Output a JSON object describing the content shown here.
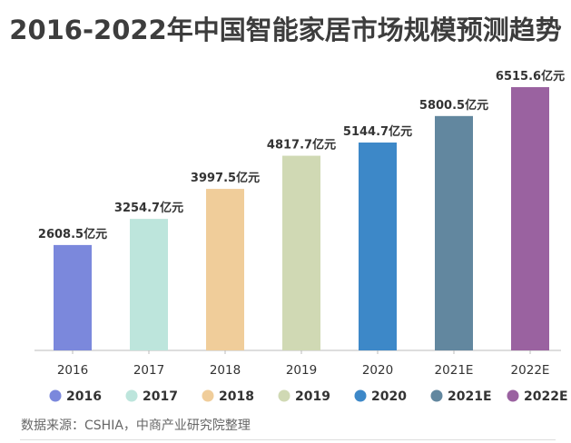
{
  "title": "2016-2022年中国智能家居市场规模预测趋势",
  "source": "数据来源：CSHIA，中商产业研究院整理",
  "chart_data": {
    "type": "bar",
    "title": "2016-2022年中国智能家居市场规模预测趋势",
    "xlabel": "",
    "ylabel": "",
    "unit": "亿元",
    "categories": [
      "2016",
      "2017",
      "2018",
      "2019",
      "2020",
      "2021E",
      "2022E"
    ],
    "values": [
      2608.5,
      3254.7,
      3997.5,
      4817.7,
      5144.7,
      5800.5,
      6515.6
    ],
    "data_labels": [
      "2608.5亿元",
      "3254.7亿元",
      "3997.5亿元",
      "4817.7亿元",
      "5144.7亿元",
      "5800.5亿元",
      "6515.6亿元"
    ],
    "colors": [
      "#7b88dc",
      "#bde5dc",
      "#f0cd9a",
      "#d0d9b4",
      "#3d88c8",
      "#62879f",
      "#9a62a0"
    ],
    "legend": [
      "2016",
      "2017",
      "2018",
      "2019",
      "2020",
      "2021E",
      "2022E"
    ],
    "legend_position": "bottom",
    "grid": false,
    "ylim": [
      0,
      6515.6
    ]
  }
}
